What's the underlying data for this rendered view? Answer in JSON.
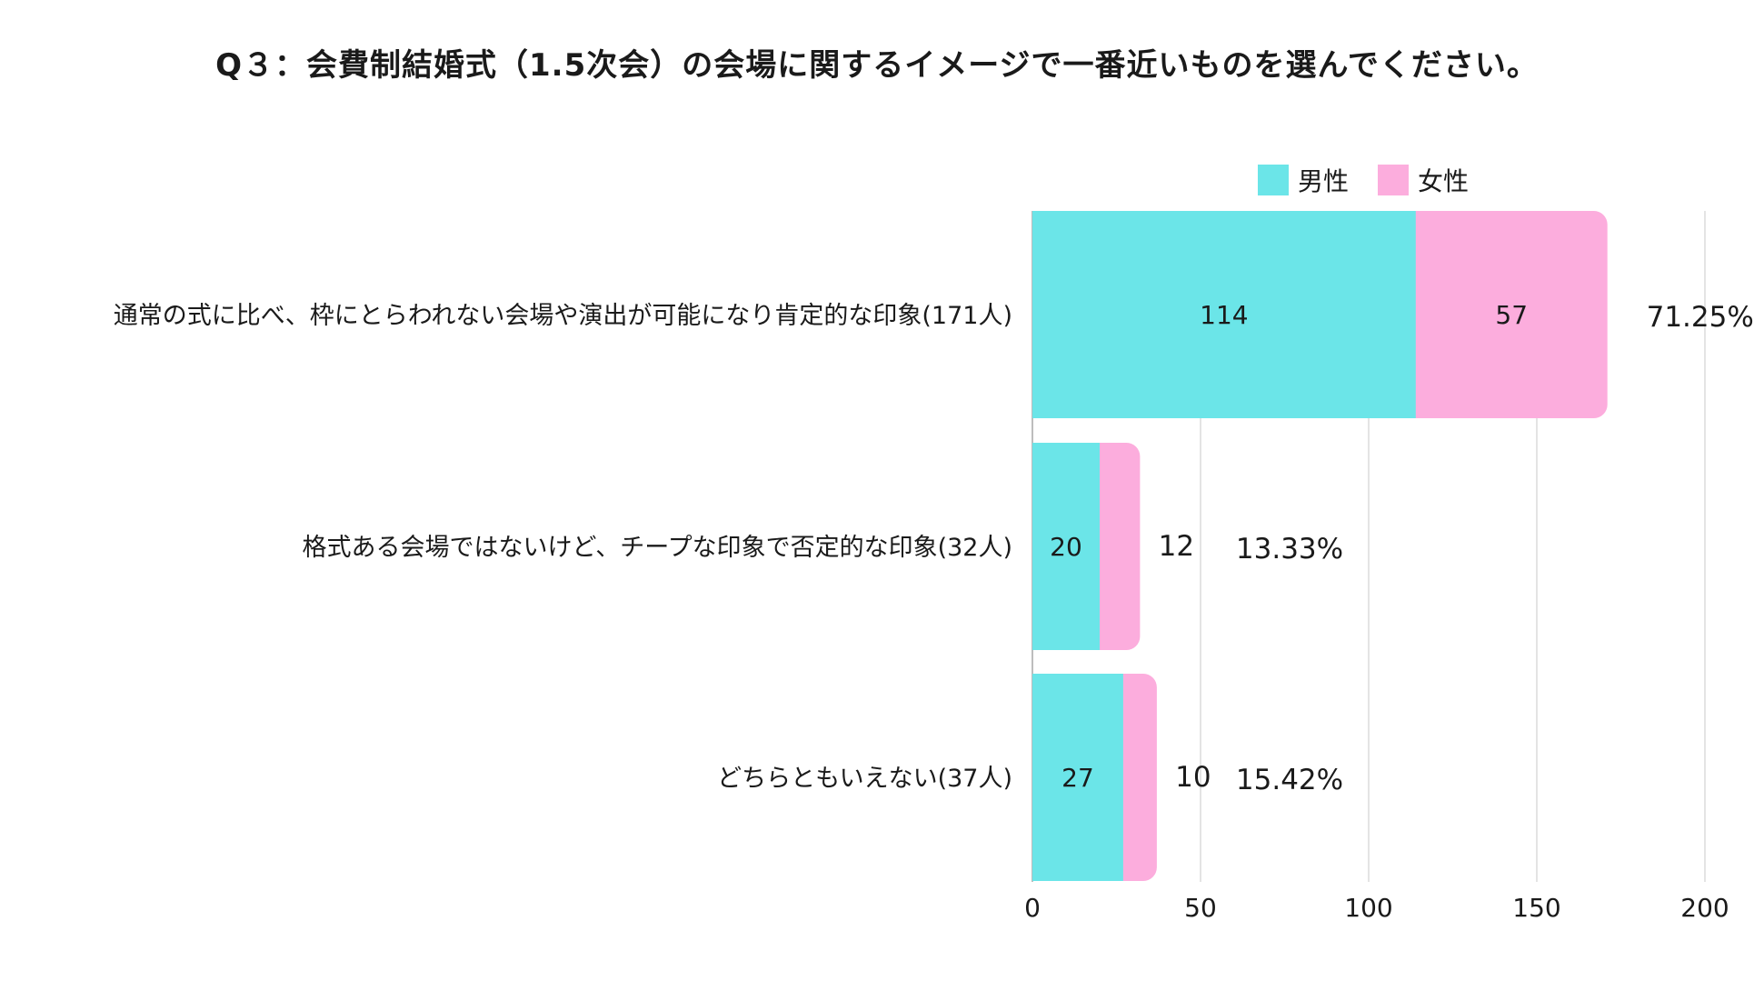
{
  "chart_data": {
    "type": "bar",
    "orientation": "horizontal",
    "stacked": true,
    "title": "Q３：会費制結婚式（1.5次会）の会場に関するイメージで一番近いものを選んでください。",
    "categories": [
      "通常の式に比べ、枠にとらわれない会場や演出が可能になり肯定的な印象(171人)",
      "格式ある会場ではないけど、チープな印象で否定的な印象(32人)",
      "どちらともいえない(37人)"
    ],
    "series": [
      {
        "name": "男性",
        "color": "#6be5e8",
        "values": [
          114,
          20,
          27
        ]
      },
      {
        "name": "女性",
        "color": "#fcaddd",
        "values": [
          57,
          12,
          10
        ]
      }
    ],
    "percent_labels": [
      "71.25%",
      "13.33%",
      "15.42%"
    ],
    "xlim": [
      0,
      200
    ],
    "xticks": [
      0,
      50,
      100,
      150,
      200
    ],
    "grid": true,
    "legend": "top-right"
  }
}
